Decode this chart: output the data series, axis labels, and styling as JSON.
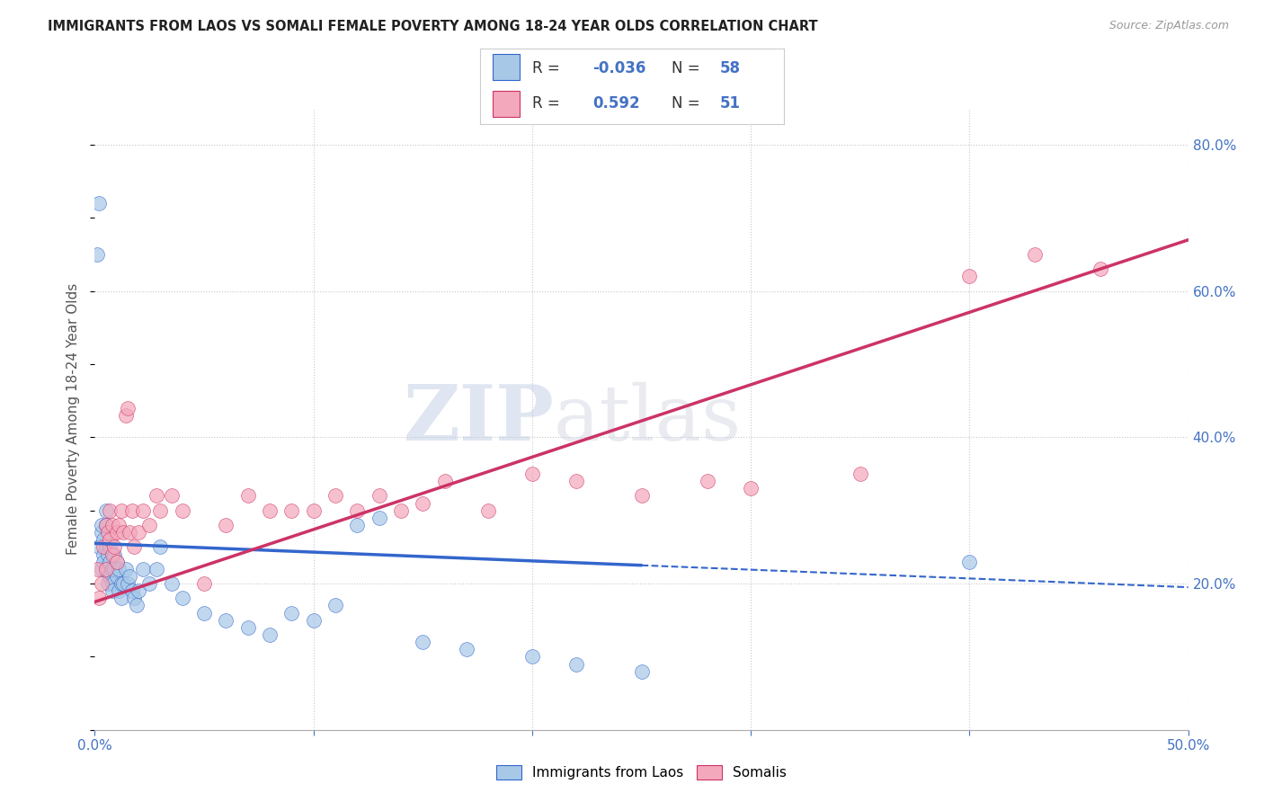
{
  "title": "IMMIGRANTS FROM LAOS VS SOMALI FEMALE POVERTY AMONG 18-24 YEAR OLDS CORRELATION CHART",
  "source": "Source: ZipAtlas.com",
  "ylabel": "Female Poverty Among 18-24 Year Olds",
  "xlim": [
    0.0,
    0.5
  ],
  "ylim": [
    0.0,
    0.85
  ],
  "laos_color": "#a8c8e8",
  "somali_color": "#f4a8bc",
  "laos_line_color": "#3366cc",
  "somali_line_color": "#cc3366",
  "laos_R": -0.036,
  "laos_N": 58,
  "somali_R": 0.592,
  "somali_N": 51,
  "watermark_text": "ZIPatlas",
  "grid_color": "#c8c8cc",
  "bg_color": "#ffffff",
  "tick_color": "#4472c4",
  "legend_text_color": "#333333",
  "legend_value_color": "#4472c4",
  "laos_pts_x": [
    0.001,
    0.002,
    0.002,
    0.003,
    0.003,
    0.003,
    0.004,
    0.004,
    0.004,
    0.005,
    0.005,
    0.005,
    0.006,
    0.006,
    0.006,
    0.007,
    0.007,
    0.007,
    0.008,
    0.008,
    0.008,
    0.009,
    0.009,
    0.01,
    0.01,
    0.011,
    0.011,
    0.012,
    0.012,
    0.013,
    0.014,
    0.015,
    0.016,
    0.017,
    0.018,
    0.019,
    0.02,
    0.022,
    0.025,
    0.028,
    0.03,
    0.035,
    0.04,
    0.05,
    0.06,
    0.07,
    0.08,
    0.09,
    0.1,
    0.11,
    0.12,
    0.13,
    0.15,
    0.17,
    0.2,
    0.22,
    0.25,
    0.4
  ],
  "laos_pts_y": [
    0.65,
    0.72,
    0.25,
    0.27,
    0.28,
    0.22,
    0.26,
    0.24,
    0.23,
    0.3,
    0.28,
    0.25,
    0.24,
    0.22,
    0.2,
    0.25,
    0.23,
    0.21,
    0.22,
    0.2,
    0.19,
    0.24,
    0.22,
    0.23,
    0.21,
    0.22,
    0.19,
    0.2,
    0.18,
    0.2,
    0.22,
    0.2,
    0.21,
    0.19,
    0.18,
    0.17,
    0.19,
    0.22,
    0.2,
    0.22,
    0.25,
    0.2,
    0.18,
    0.16,
    0.15,
    0.14,
    0.13,
    0.16,
    0.15,
    0.17,
    0.28,
    0.29,
    0.12,
    0.11,
    0.1,
    0.09,
    0.08,
    0.23
  ],
  "somali_pts_x": [
    0.001,
    0.002,
    0.003,
    0.004,
    0.005,
    0.005,
    0.006,
    0.007,
    0.007,
    0.008,
    0.008,
    0.009,
    0.01,
    0.01,
    0.011,
    0.012,
    0.013,
    0.014,
    0.015,
    0.016,
    0.017,
    0.018,
    0.02,
    0.022,
    0.025,
    0.028,
    0.03,
    0.035,
    0.04,
    0.05,
    0.06,
    0.07,
    0.08,
    0.09,
    0.1,
    0.11,
    0.12,
    0.13,
    0.14,
    0.15,
    0.16,
    0.18,
    0.2,
    0.22,
    0.25,
    0.28,
    0.3,
    0.35,
    0.4,
    0.43,
    0.46
  ],
  "somali_pts_y": [
    0.22,
    0.18,
    0.2,
    0.25,
    0.28,
    0.22,
    0.27,
    0.3,
    0.26,
    0.24,
    0.28,
    0.25,
    0.27,
    0.23,
    0.28,
    0.3,
    0.27,
    0.43,
    0.44,
    0.27,
    0.3,
    0.25,
    0.27,
    0.3,
    0.28,
    0.32,
    0.3,
    0.32,
    0.3,
    0.2,
    0.28,
    0.32,
    0.3,
    0.3,
    0.3,
    0.32,
    0.3,
    0.32,
    0.3,
    0.31,
    0.34,
    0.3,
    0.35,
    0.34,
    0.32,
    0.34,
    0.33,
    0.35,
    0.62,
    0.65,
    0.63
  ],
  "laos_line_x0": 0.0,
  "laos_line_x_solid_end": 0.25,
  "laos_line_x1": 0.5,
  "laos_line_y0": 0.255,
  "laos_line_y1": 0.195,
  "somali_line_x0": 0.0,
  "somali_line_x1": 0.5,
  "somali_line_y0": 0.175,
  "somali_line_y1": 0.67
}
